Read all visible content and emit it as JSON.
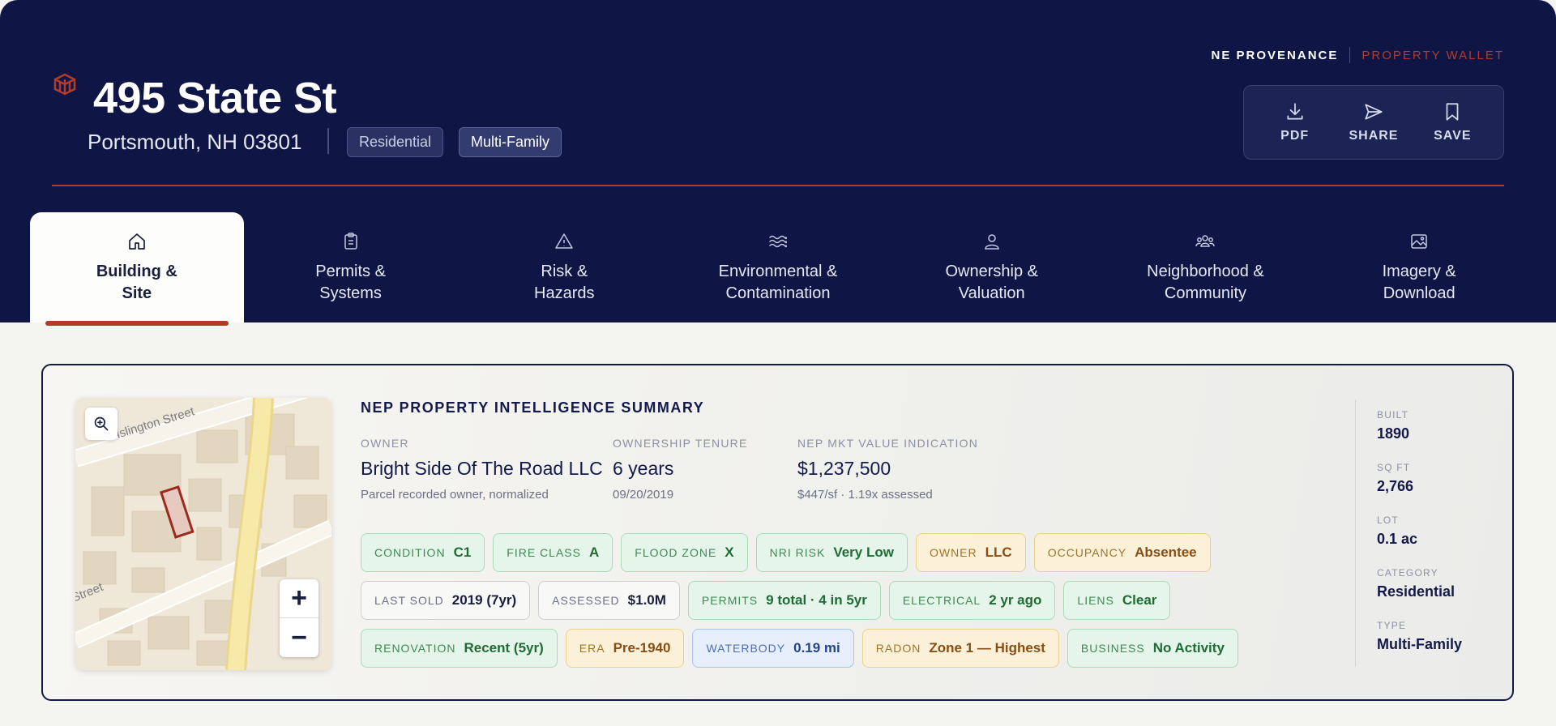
{
  "brand": {
    "name": "NE PROVENANCE",
    "product": "PROPERTY WALLET"
  },
  "property": {
    "title": "495 State St",
    "city": "Portsmouth, NH 03801",
    "tags": [
      "Residential",
      "Multi-Family"
    ]
  },
  "actions": [
    {
      "label": "PDF",
      "icon": "download-icon"
    },
    {
      "label": "SHARE",
      "icon": "send-icon"
    },
    {
      "label": "SAVE",
      "icon": "bookmark-icon"
    }
  ],
  "tabs": [
    {
      "label": "Building &\nSite",
      "icon": "home-icon",
      "active": true
    },
    {
      "label": "Permits &\nSystems",
      "icon": "clipboard-icon"
    },
    {
      "label": "Risk &\nHazards",
      "icon": "warning-icon"
    },
    {
      "label": "Environmental &\nContamination",
      "icon": "waves-icon"
    },
    {
      "label": "Ownership &\nValuation",
      "icon": "person-icon"
    },
    {
      "label": "Neighborhood &\nCommunity",
      "icon": "people-icon"
    },
    {
      "label": "Imagery &\nDownload",
      "icon": "image-icon"
    }
  ],
  "map": {
    "street_labels": [
      "Islington Street",
      "Street"
    ],
    "zoom_in": "+",
    "zoom_out": "−"
  },
  "summary": {
    "title": "NEP PROPERTY INTELLIGENCE SUMMARY",
    "owner": {
      "label": "OWNER",
      "value": "Bright Side Of The Road LLC",
      "sub": "Parcel recorded owner, normalized"
    },
    "tenure": {
      "label": "OWNERSHIP TENURE",
      "value": "6 years",
      "sub": "09/20/2019"
    },
    "value": {
      "label": "NEP MKT VALUE INDICATION",
      "value": "$1,237,500",
      "sub": "$447/sf  ·  1.19x assessed"
    },
    "badges": [
      [
        {
          "k": "CONDITION",
          "v": "C1",
          "tone": "green"
        },
        {
          "k": "FIRE CLASS",
          "v": "A",
          "tone": "green"
        },
        {
          "k": "FLOOD ZONE",
          "v": "X",
          "tone": "green"
        },
        {
          "k": "NRI RISK",
          "v": "Very Low",
          "tone": "green"
        },
        {
          "k": "OWNER",
          "v": "LLC",
          "tone": "amber"
        },
        {
          "k": "OCCUPANCY",
          "v": "Absentee",
          "tone": "amber"
        }
      ],
      [
        {
          "k": "LAST SOLD",
          "v": "2019 (7yr)",
          "tone": "gray"
        },
        {
          "k": "ASSESSED",
          "v": "$1.0M",
          "tone": "gray"
        },
        {
          "k": "PERMITS",
          "v": "9 total · 4 in 5yr",
          "tone": "green"
        },
        {
          "k": "ELECTRICAL",
          "v": "2 yr ago",
          "tone": "green"
        },
        {
          "k": "LIENS",
          "v": "Clear",
          "tone": "green"
        }
      ],
      [
        {
          "k": "RENOVATION",
          "v": "Recent (5yr)",
          "tone": "green"
        },
        {
          "k": "ERA",
          "v": "Pre-1940",
          "tone": "amber"
        },
        {
          "k": "WATERBODY",
          "v": "0.19 mi",
          "tone": "blue"
        },
        {
          "k": "RADON",
          "v": "Zone 1 — Highest",
          "tone": "amber"
        },
        {
          "k": "BUSINESS",
          "v": "No Activity",
          "tone": "green"
        }
      ]
    ]
  },
  "facts": [
    {
      "k": "BUILT",
      "v": "1890"
    },
    {
      "k": "SQ FT",
      "v": "2,766"
    },
    {
      "k": "LOT",
      "v": "0.1 ac"
    },
    {
      "k": "CATEGORY",
      "v": "Residential"
    },
    {
      "k": "TYPE",
      "v": "Multi-Family"
    }
  ],
  "colors": {
    "navy": "#0f1646",
    "accent": "#b23b2a",
    "page": "#f4f4f1"
  }
}
